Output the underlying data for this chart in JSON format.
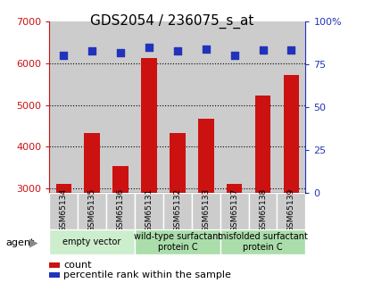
{
  "title": "GDS2054 / 236075_s_at",
  "samples": [
    "GSM65134",
    "GSM65135",
    "GSM65136",
    "GSM65131",
    "GSM65132",
    "GSM65133",
    "GSM65137",
    "GSM65138",
    "GSM65139"
  ],
  "counts": [
    3100,
    4320,
    3540,
    6120,
    4320,
    4660,
    3100,
    5230,
    5720
  ],
  "percentiles": [
    80,
    83,
    82,
    85,
    83,
    84,
    80,
    83.5,
    83.5
  ],
  "ylim_left": [
    2900,
    7000
  ],
  "ylim_right": [
    0,
    100
  ],
  "yticks_left": [
    3000,
    4000,
    5000,
    6000,
    7000
  ],
  "yticks_right": [
    0,
    25,
    50,
    75,
    100
  ],
  "bar_color": "#cc1111",
  "dot_color": "#2233bb",
  "bg_color": "#cccccc",
  "agent_groups": [
    {
      "label": "empty vector",
      "start": 0,
      "end": 3,
      "color": "#cceecc"
    },
    {
      "label": "wild-type surfactant\nprotein C",
      "start": 3,
      "end": 6,
      "color": "#aaddaa"
    },
    {
      "label": "misfolded surfactant\nprotein C",
      "start": 6,
      "end": 9,
      "color": "#aaddaa"
    }
  ],
  "legend_count_label": "count",
  "legend_pct_label": "percentile rank within the sample",
  "left_axis_color": "#cc1111",
  "right_axis_color": "#2233bb",
  "tick_fontsize": 8,
  "title_fontsize": 11,
  "sample_label_fontsize": 6.5,
  "agent_label_fontsize": 7,
  "legend_fontsize": 8
}
